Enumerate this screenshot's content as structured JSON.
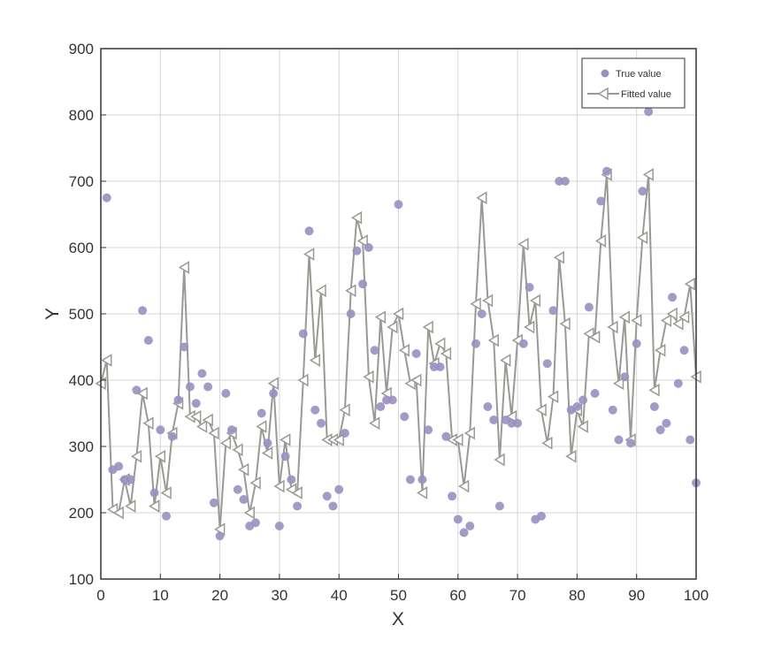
{
  "chart_data": {
    "type": "scatter",
    "title": "",
    "xlabel": "X",
    "ylabel": "Y",
    "xlim": [
      0,
      100
    ],
    "ylim": [
      100,
      900
    ],
    "xticks": [
      "0",
      "10",
      "20",
      "30",
      "40",
      "50",
      "60",
      "70",
      "80",
      "90",
      "100"
    ],
    "yticks": [
      "100",
      "200",
      "300",
      "400",
      "500",
      "600",
      "700",
      "800",
      "900"
    ],
    "grid": true,
    "legend_position": "top-right",
    "colors": {
      "true_value": "#9b8fc0",
      "fitted_value": "#9a9a94",
      "marker_fill": "#ffffff",
      "grid": "#d6d6d6",
      "axis": "#333333"
    },
    "series": [
      {
        "name": "True value",
        "type": "scatter",
        "x": [
          1,
          2,
          3,
          4,
          5,
          6,
          7,
          8,
          9,
          10,
          11,
          12,
          13,
          14,
          15,
          16,
          17,
          18,
          19,
          20,
          21,
          22,
          23,
          24,
          25,
          26,
          27,
          28,
          29,
          30,
          31,
          32,
          33,
          34,
          35,
          36,
          37,
          38,
          39,
          40,
          41,
          42,
          43,
          44,
          45,
          46,
          47,
          48,
          49,
          50,
          51,
          52,
          53,
          54,
          55,
          56,
          57,
          58,
          59,
          60,
          61,
          62,
          63,
          64,
          65,
          66,
          67,
          68,
          69,
          70,
          71,
          72,
          73,
          74,
          75,
          76,
          77,
          78,
          79,
          80,
          81,
          82,
          83,
          84,
          85,
          86,
          87,
          88,
          89,
          90,
          91,
          92,
          93,
          94,
          95,
          96,
          97,
          98,
          99,
          100
        ],
        "y": [
          675,
          265,
          270,
          250,
          250,
          385,
          505,
          460,
          230,
          325,
          195,
          315,
          370,
          450,
          390,
          365,
          410,
          390,
          215,
          165,
          380,
          325,
          235,
          220,
          180,
          185,
          350,
          305,
          380,
          180,
          285,
          250,
          210,
          470,
          625,
          355,
          335,
          225,
          210,
          235,
          320,
          500,
          595,
          545,
          600,
          445,
          360,
          370,
          370,
          665,
          345,
          250,
          440,
          250,
          325,
          420,
          420,
          315,
          225,
          190,
          170,
          180,
          455,
          500,
          360,
          340,
          210,
          340,
          335,
          335,
          455,
          540,
          190,
          195,
          425,
          505,
          700,
          700,
          355,
          360,
          370,
          510,
          380,
          670,
          715,
          355,
          310,
          405,
          305,
          455,
          685,
          805,
          360,
          325,
          335,
          525,
          395,
          445,
          310,
          245
        ]
      },
      {
        "name": "Fitted value",
        "type": "line",
        "marker": "triangle-left",
        "x": [
          0,
          1,
          2,
          3,
          4,
          5,
          6,
          7,
          8,
          9,
          10,
          11,
          12,
          13,
          14,
          15,
          16,
          17,
          18,
          19,
          20,
          21,
          22,
          23,
          24,
          25,
          26,
          27,
          28,
          29,
          30,
          31,
          32,
          33,
          34,
          35,
          36,
          37,
          38,
          39,
          40,
          41,
          42,
          43,
          44,
          45,
          46,
          47,
          48,
          49,
          50,
          51,
          52,
          53,
          54,
          55,
          56,
          57,
          58,
          59,
          60,
          61,
          62,
          63,
          64,
          65,
          66,
          67,
          68,
          69,
          70,
          71,
          72,
          73,
          74,
          75,
          76,
          77,
          78,
          79,
          80,
          81,
          82,
          83,
          84,
          85,
          86,
          87,
          88,
          89,
          90,
          91,
          92,
          93,
          94,
          95,
          96,
          97,
          98,
          99,
          100
        ],
        "y": [
          395,
          430,
          205,
          200,
          250,
          210,
          285,
          380,
          335,
          210,
          285,
          230,
          320,
          365,
          570,
          345,
          345,
          330,
          340,
          320,
          175,
          305,
          320,
          295,
          265,
          200,
          245,
          330,
          290,
          395,
          240,
          310,
          235,
          230,
          400,
          590,
          430,
          535,
          310,
          310,
          310,
          355,
          535,
          645,
          610,
          405,
          335,
          495,
          380,
          480,
          500,
          445,
          395,
          400,
          230,
          480,
          425,
          455,
          440,
          310,
          310,
          240,
          320,
          515,
          675,
          520,
          460,
          280,
          430,
          345,
          460,
          605,
          480,
          520,
          355,
          305,
          375,
          585,
          485,
          285,
          355,
          330,
          470,
          465,
          610,
          710,
          480,
          395,
          495,
          310,
          490,
          615,
          710,
          385,
          445,
          490,
          500,
          485,
          495,
          545,
          405
        ]
      }
    ]
  }
}
